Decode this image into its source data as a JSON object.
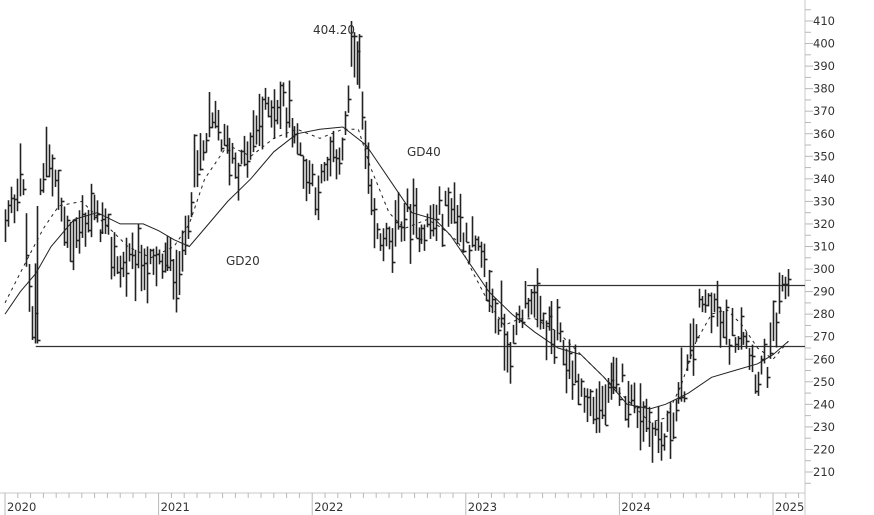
{
  "chart_data": {
    "type": "ohlc-bar",
    "title": "",
    "xlabel": "",
    "ylabel": "",
    "ylim": [
      205,
      415
    ],
    "y_ticks": [
      210,
      220,
      230,
      240,
      250,
      260,
      270,
      280,
      290,
      300,
      310,
      320,
      330,
      340,
      350,
      360,
      370,
      380,
      390,
      400,
      410
    ],
    "x_ticks": [
      "2020",
      "2021",
      "2022",
      "2023",
      "2024",
      "2025"
    ],
    "grid": false,
    "legend": null,
    "annotations": [
      {
        "text": "404.20",
        "role": "high-label",
        "value": 404.2
      },
      {
        "text": "GD40",
        "role": "moving-average-label",
        "series": "GD40"
      },
      {
        "text": "GD20",
        "role": "moving-average-label",
        "series": "GD20"
      }
    ],
    "horizontal_lines": [
      {
        "name": "support",
        "value": 266,
        "start_year": 2020.2
      },
      {
        "name": "resistance",
        "value": 293,
        "start_year": 2023.4
      }
    ],
    "price_path": {
      "x": [
        2020.0,
        2020.05,
        2020.1,
        2020.13,
        2020.17,
        2020.2,
        2020.22,
        2020.27,
        2020.33,
        2020.38,
        2020.45,
        2020.55,
        2020.65,
        2020.75,
        2020.85,
        2020.95,
        2021.05,
        2021.15,
        2021.22,
        2021.28,
        2021.35,
        2021.45,
        2021.55,
        2021.65,
        2021.75,
        2021.85,
        2021.95,
        2022.05,
        2022.12,
        2022.2,
        2022.25,
        2022.3,
        2022.33,
        2022.4,
        2022.5,
        2022.6,
        2022.7,
        2022.8,
        2022.9,
        2023.0,
        2023.08,
        2023.15,
        2023.22,
        2023.3,
        2023.35,
        2023.42,
        2023.5,
        2023.6,
        2023.7,
        2023.8,
        2023.9,
        2024.0,
        2024.1,
        2024.2,
        2024.28,
        2024.35,
        2024.45,
        2024.52,
        2024.6,
        2024.7,
        2024.8,
        2024.9,
        2024.97,
        2025.05,
        2025.1
      ],
      "close": [
        318,
        328,
        345,
        320,
        270,
        300,
        335,
        352,
        338,
        322,
        312,
        325,
        318,
        300,
        305,
        300,
        303,
        300,
        340,
        350,
        365,
        352,
        345,
        365,
        375,
        370,
        345,
        335,
        345,
        355,
        390,
        404,
        362,
        315,
        310,
        325,
        318,
        320,
        330,
        315,
        305,
        290,
        278,
        262,
        280,
        290,
        275,
        268,
        255,
        238,
        240,
        250,
        240,
        232,
        222,
        235,
        255,
        282,
        285,
        268,
        275,
        252,
        258,
        285,
        296
      ]
    },
    "series": [
      {
        "name": "GD20",
        "style": "dashed",
        "x": [
          2020.0,
          2020.15,
          2020.25,
          2020.35,
          2020.5,
          2020.65,
          2020.8,
          2020.95,
          2021.1,
          2021.2,
          2021.3,
          2021.45,
          2021.6,
          2021.75,
          2021.9,
          2022.05,
          2022.2,
          2022.3,
          2022.38,
          2022.5,
          2022.6,
          2022.75,
          2022.85,
          2022.95,
          2023.05,
          2023.15,
          2023.25,
          2023.35,
          2023.45,
          2023.6,
          2023.75,
          2023.9,
          2024.05,
          2024.2,
          2024.3,
          2024.4,
          2024.5,
          2024.6,
          2024.7,
          2024.8,
          2024.9,
          2025.0,
          2025.1
        ],
        "values": [
          285,
          305,
          318,
          328,
          330,
          320,
          310,
          305,
          310,
          320,
          340,
          355,
          350,
          358,
          362,
          358,
          362,
          362,
          345,
          325,
          318,
          322,
          318,
          312,
          298,
          285,
          275,
          278,
          278,
          272,
          262,
          252,
          242,
          232,
          234,
          248,
          268,
          280,
          282,
          275,
          265,
          260,
          268
        ]
      },
      {
        "name": "GD40",
        "style": "solid",
        "x": [
          2020.0,
          2020.1,
          2020.2,
          2020.3,
          2020.45,
          2020.6,
          2020.75,
          2020.9,
          2021.0,
          2021.1,
          2021.2,
          2021.3,
          2021.45,
          2021.6,
          2021.75,
          2021.9,
          2022.05,
          2022.2,
          2022.35,
          2022.5,
          2022.65,
          2022.8,
          2022.9,
          2023.0,
          2023.15,
          2023.3,
          2023.45,
          2023.6,
          2023.75,
          2023.9,
          2024.05,
          2024.2,
          2024.3,
          2024.45,
          2024.6,
          2024.75,
          2024.9,
          2025.0,
          2025.1
        ],
        "values": [
          280,
          290,
          298,
          310,
          322,
          325,
          320,
          320,
          317,
          313,
          310,
          318,
          330,
          340,
          352,
          360,
          362,
          363,
          355,
          340,
          325,
          322,
          315,
          305,
          290,
          280,
          272,
          265,
          262,
          252,
          240,
          238,
          240,
          245,
          252,
          255,
          258,
          262,
          268
        ]
      }
    ]
  }
}
